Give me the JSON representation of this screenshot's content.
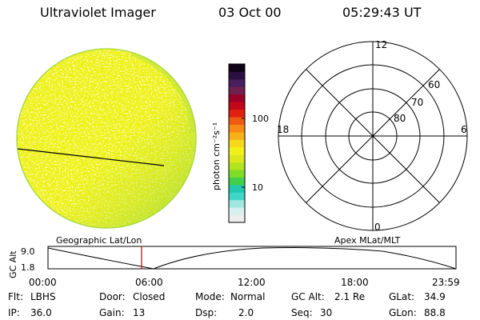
{
  "header": {
    "title": "Ultraviolet Imager",
    "date": "03 Oct 00",
    "time": "05:29:43 UT"
  },
  "colorbar": {
    "label": "photon cm⁻²s⁻¹",
    "tick_100": "100",
    "tick_10": "10",
    "colors": [
      "#eeeeee",
      "#d8f0f0",
      "#9ee8e0",
      "#3fd6c8",
      "#22c8b0",
      "#42d04a",
      "#7fdc2a",
      "#b4e41e",
      "#dce81c",
      "#f2f01a",
      "#f6d81c",
      "#f7b01a",
      "#f78a14",
      "#ee5a10",
      "#e02010",
      "#c00818",
      "#9a0028",
      "#70204e",
      "#4a1e5c",
      "#2a1040",
      "#100418"
    ]
  },
  "polar": {
    "mlt_top": "12",
    "mlt_left": "18",
    "mlt_right": "6",
    "mlt_bottom": "0",
    "lat_60": "60",
    "lat_70": "70",
    "lat_80": "80"
  },
  "timeline": {
    "ylabel": "GC Alt",
    "ytick": "9.0",
    "ytick2": "1.8",
    "left_title": "Geographic Lat/Lon",
    "right_title": "Apex MLat/MLT",
    "xticks": [
      "00:00",
      "06:00",
      "12:00",
      "18:00",
      "23:59"
    ],
    "marker_color": "#cc0000"
  },
  "info": {
    "flt_label": "Flt:",
    "flt_value": "LBHS",
    "ip_label": "IP:",
    "ip_value": "36.0",
    "door_label": "Door:",
    "door_value": "Closed",
    "gain_label": "Gain:",
    "gain_value": "13",
    "mode_label": "Mode:",
    "mode_value": "Normal",
    "dsp_label": "Dsp:",
    "dsp_value": "2.0",
    "gcalt_label": "GC Alt:",
    "gcalt_value": "2.1 Re",
    "seq_label": "Seq:",
    "seq_value": "30",
    "glat_label": "GLat:",
    "glat_value": "34.9",
    "glon_label": "GLon:",
    "glon_value": "88.8"
  }
}
